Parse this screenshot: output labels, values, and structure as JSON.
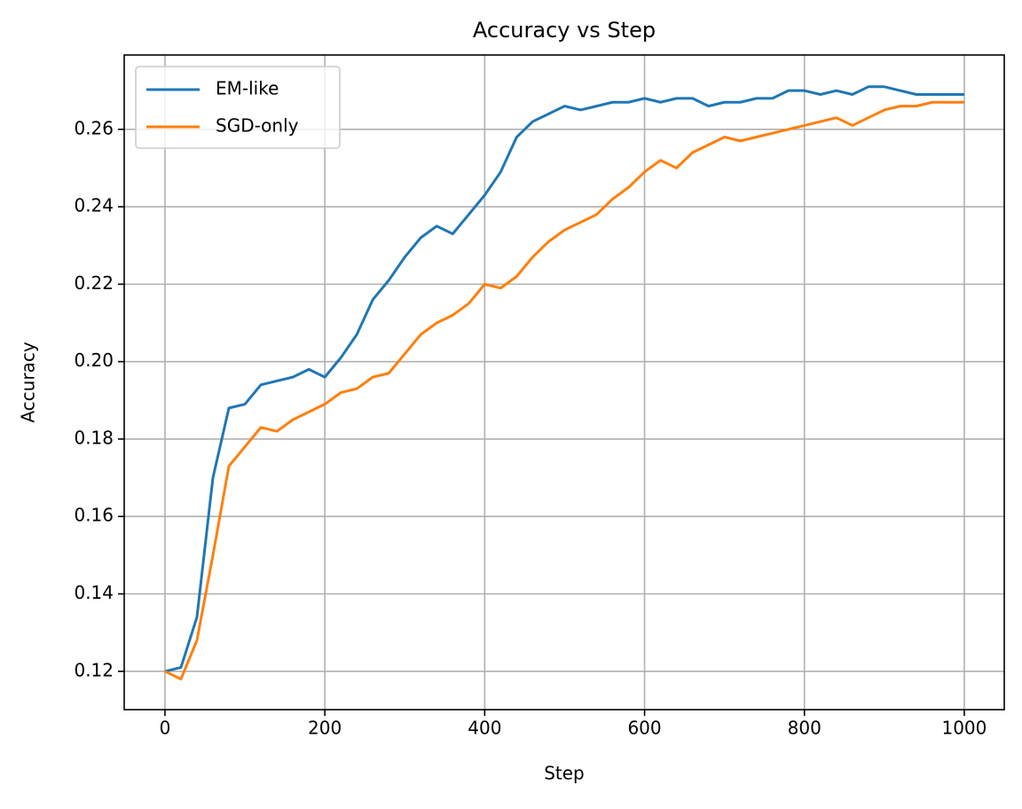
{
  "chart_data": {
    "type": "line",
    "title": "Accuracy vs Step",
    "x_label": "Step",
    "y_label": "Accuracy",
    "x": [
      0,
      20,
      40,
      60,
      80,
      100,
      120,
      140,
      160,
      180,
      200,
      220,
      240,
      260,
      280,
      300,
      320,
      340,
      360,
      380,
      400,
      420,
      440,
      460,
      480,
      500,
      520,
      540,
      560,
      580,
      600,
      620,
      640,
      660,
      680,
      700,
      720,
      740,
      760,
      780,
      800,
      820,
      840,
      860,
      880,
      900,
      920,
      940,
      960,
      980,
      1000
    ],
    "series": [
      {
        "name": "EM-like",
        "color": "#1f77b4",
        "values": [
          0.12,
          0.121,
          0.134,
          0.17,
          0.188,
          0.189,
          0.194,
          0.195,
          0.196,
          0.198,
          0.196,
          0.201,
          0.207,
          0.216,
          0.221,
          0.227,
          0.232,
          0.235,
          0.233,
          0.238,
          0.243,
          0.249,
          0.258,
          0.262,
          0.264,
          0.266,
          0.265,
          0.266,
          0.267,
          0.267,
          0.268,
          0.267,
          0.268,
          0.268,
          0.266,
          0.267,
          0.267,
          0.268,
          0.268,
          0.27,
          0.27,
          0.269,
          0.27,
          0.269,
          0.271,
          0.271,
          0.27,
          0.269,
          0.269,
          0.269,
          0.269
        ]
      },
      {
        "name": "SGD-only",
        "color": "#ff7f0e",
        "values": [
          0.12,
          0.118,
          0.128,
          0.15,
          0.173,
          0.178,
          0.183,
          0.182,
          0.185,
          0.187,
          0.189,
          0.192,
          0.193,
          0.196,
          0.197,
          0.202,
          0.207,
          0.21,
          0.212,
          0.215,
          0.22,
          0.219,
          0.222,
          0.227,
          0.231,
          0.234,
          0.236,
          0.238,
          0.242,
          0.245,
          0.249,
          0.252,
          0.25,
          0.254,
          0.256,
          0.258,
          0.257,
          0.258,
          0.259,
          0.26,
          0.261,
          0.262,
          0.263,
          0.261,
          0.263,
          0.265,
          0.266,
          0.266,
          0.267,
          0.267,
          0.267
        ]
      }
    ],
    "xlim": [
      -51,
      1050
    ],
    "ylim": [
      0.1101,
      0.2792
    ],
    "xticks": [
      0,
      200,
      400,
      600,
      800,
      1000
    ],
    "yticks": [
      0.12,
      0.14,
      0.16,
      0.18,
      {
        "value": 0.2,
        "label": "0.20"
      },
      0.22,
      0.24,
      0.26
    ],
    "grid": true,
    "legend_position": "upper left"
  }
}
